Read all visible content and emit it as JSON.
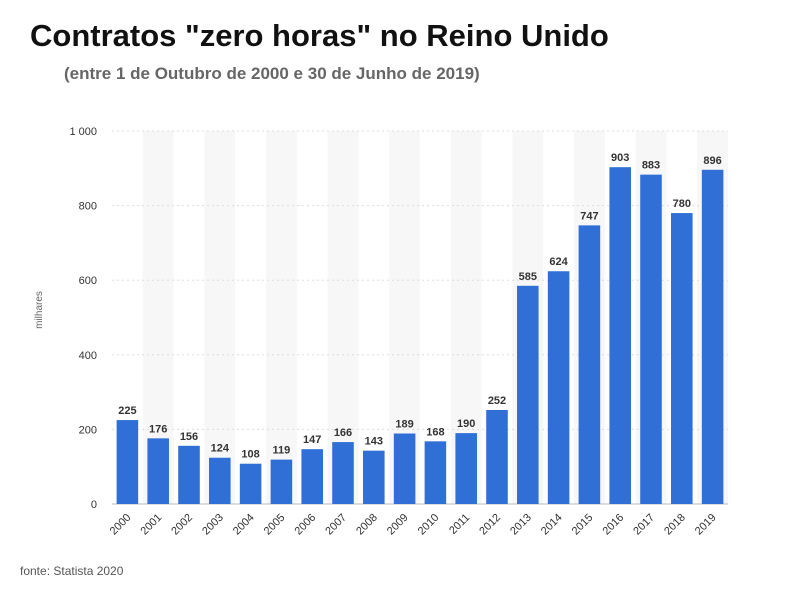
{
  "chart_data": {
    "type": "bar",
    "title": "Contratos \"zero horas\" no Reino Unido",
    "subtitle": "(entre 1 de Outubro de 2000 e 30 de Junho de 2019)",
    "xlabel": "",
    "ylabel": "milhares",
    "categories": [
      "2000",
      "2001",
      "2002",
      "2003",
      "2004",
      "2005",
      "2006",
      "2007",
      "2008",
      "2009",
      "2010",
      "2011",
      "2012",
      "2013",
      "2014",
      "2015",
      "2016",
      "2017",
      "2018",
      "2019"
    ],
    "values": [
      225,
      176,
      156,
      124,
      108,
      119,
      147,
      166,
      143,
      189,
      168,
      190,
      252,
      585,
      624,
      747,
      903,
      883,
      780,
      896
    ],
    "value_labels": [
      "225",
      "176",
      "156",
      "124",
      "108",
      "119",
      "147",
      "166",
      "143",
      "189",
      "168",
      "190",
      "252",
      "585",
      "624",
      "747",
      "903",
      "883",
      "780",
      "896"
    ],
    "ylim": [
      0,
      1000
    ],
    "yticks": [
      0,
      200,
      400,
      600,
      800,
      1000
    ],
    "ytick_labels": [
      "0",
      "200",
      "400",
      "600",
      "800",
      "1 000"
    ],
    "grid": true,
    "legend": "none",
    "bar_color": "#2f6fd6",
    "source": "fonte: Statista 2020"
  }
}
